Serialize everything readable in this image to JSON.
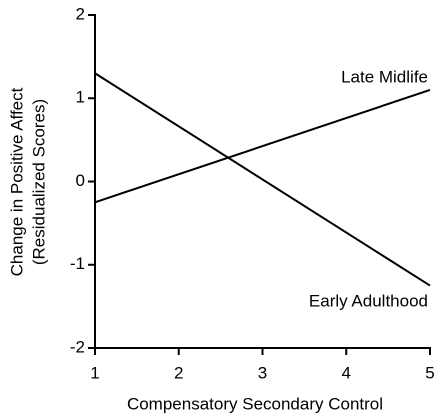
{
  "chart_data": {
    "type": "line",
    "xlabel": "Compensatory Secondary Control",
    "ylabel": [
      "Change in Positive Affect",
      "(Residualized Scores)"
    ],
    "x": [
      1,
      5
    ],
    "series": [
      {
        "name": "Late Midlife",
        "color": "#000000",
        "values": [
          -0.25,
          1.1
        ]
      },
      {
        "name": "Early Adulthood",
        "color": "#000000",
        "values": [
          1.3,
          -1.25
        ]
      }
    ],
    "xlim": [
      1,
      5
    ],
    "xticks": [
      1,
      2,
      3,
      4,
      5
    ],
    "ylim": [
      -2,
      2
    ],
    "yticks": [
      -2,
      -1,
      0,
      1,
      2
    ]
  }
}
